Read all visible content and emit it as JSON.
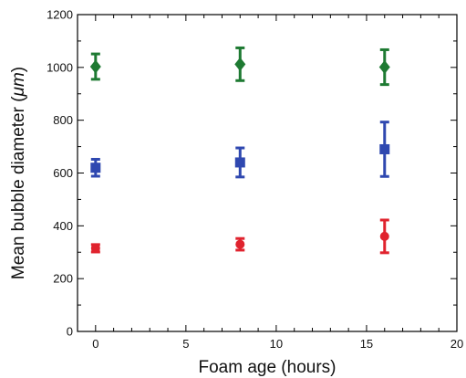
{
  "chart_data": {
    "type": "scatter",
    "xlabel": "Foam age (hours)",
    "ylabel_prefix": "Mean bubble diameter  (",
    "ylabel_unit": "μm",
    "ylabel_suffix": ")",
    "xlim": [
      -1,
      20
    ],
    "ylim": [
      0,
      1200
    ],
    "xticks": [
      0,
      5,
      10,
      15,
      20
    ],
    "yticks": [
      0,
      200,
      400,
      600,
      800,
      1000,
      1200
    ],
    "grid": false,
    "legend": "none",
    "series": [
      {
        "marker": "diamond",
        "color": "#1e7a32",
        "points": [
          {
            "x": 0,
            "y": 1003,
            "err": 48
          },
          {
            "x": 8,
            "y": 1012,
            "err": 62
          },
          {
            "x": 16,
            "y": 1001,
            "err": 66
          }
        ]
      },
      {
        "marker": "square",
        "color": "#2f48b0",
        "points": [
          {
            "x": 0,
            "y": 620,
            "err": 32
          },
          {
            "x": 8,
            "y": 640,
            "err": 55
          },
          {
            "x": 16,
            "y": 690,
            "err": 103
          }
        ]
      },
      {
        "marker": "circle",
        "color": "#e0232e",
        "points": [
          {
            "x": 0,
            "y": 315,
            "err": 14
          },
          {
            "x": 8,
            "y": 330,
            "err": 22
          },
          {
            "x": 16,
            "y": 360,
            "err": 62
          }
        ]
      }
    ]
  }
}
